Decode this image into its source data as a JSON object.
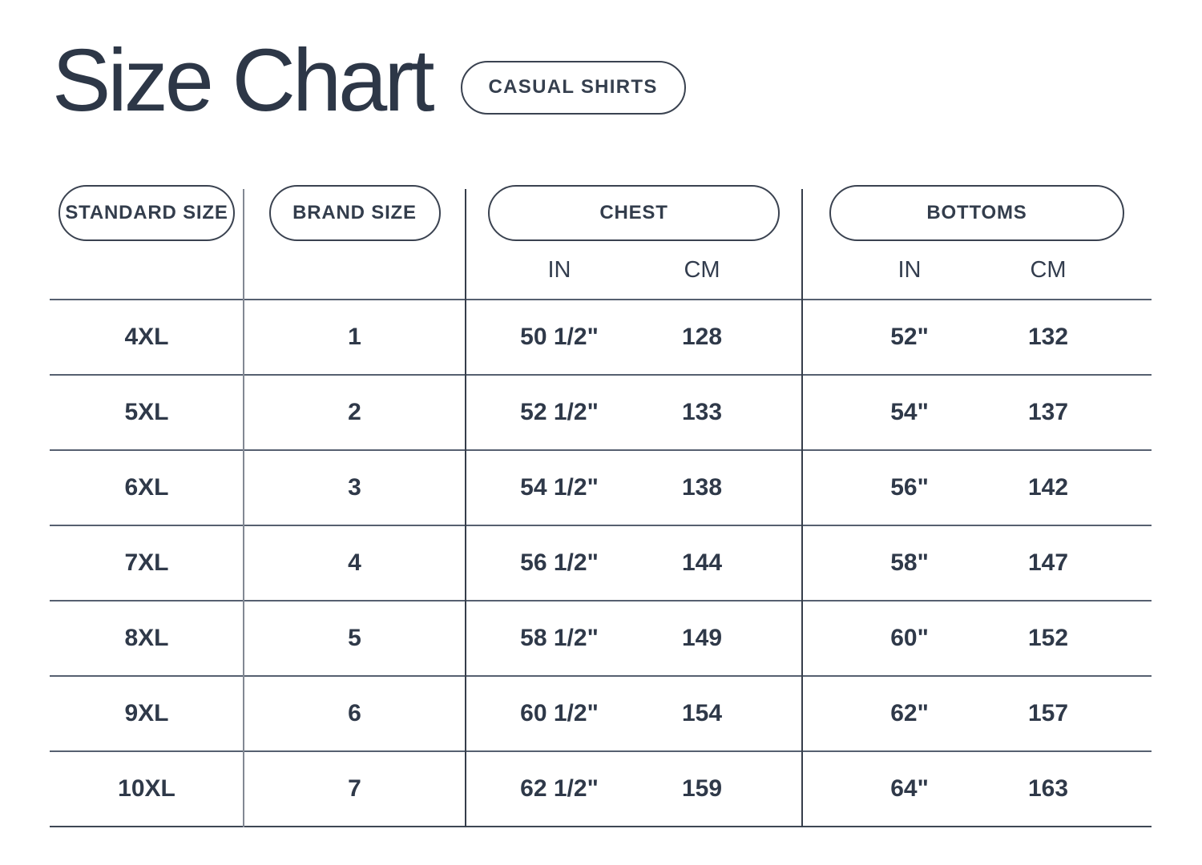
{
  "page": {
    "title": "Size Chart",
    "category_badge": "CASUAL SHIRTS"
  },
  "table": {
    "columns": {
      "standard_size": "STANDARD SIZE",
      "brand_size": "BRAND SIZE",
      "chest": "CHEST",
      "bottoms": "BOTTOMS"
    },
    "units": {
      "chest_in": "IN",
      "chest_cm": "CM",
      "bottoms_in": "IN",
      "bottoms_cm": "CM"
    },
    "rows": [
      {
        "standard": "4XL",
        "brand": "1",
        "chest_in": "50 1/2\"",
        "chest_cm": "128",
        "bottoms_in": "52\"",
        "bottoms_cm": "132"
      },
      {
        "standard": "5XL",
        "brand": "2",
        "chest_in": "52 1/2\"",
        "chest_cm": "133",
        "bottoms_in": "54\"",
        "bottoms_cm": "137"
      },
      {
        "standard": "6XL",
        "brand": "3",
        "chest_in": "54 1/2\"",
        "chest_cm": "138",
        "bottoms_in": "56\"",
        "bottoms_cm": "142"
      },
      {
        "standard": "7XL",
        "brand": "4",
        "chest_in": "56 1/2\"",
        "chest_cm": "144",
        "bottoms_in": "58\"",
        "bottoms_cm": "147"
      },
      {
        "standard": "8XL",
        "brand": "5",
        "chest_in": "58 1/2\"",
        "chest_cm": "149",
        "bottoms_in": "60\"",
        "bottoms_cm": "152"
      },
      {
        "standard": "9XL",
        "brand": "6",
        "chest_in": "60 1/2\"",
        "chest_cm": "154",
        "bottoms_in": "62\"",
        "bottoms_cm": "157"
      },
      {
        "standard": "10XL",
        "brand": "7",
        "chest_in": "62 1/2\"",
        "chest_cm": "159",
        "bottoms_in": "64\"",
        "bottoms_cm": "163"
      }
    ]
  },
  "chart_data": {
    "type": "table",
    "title": "Size Chart",
    "subtitle": "CASUAL SHIRTS",
    "columns": [
      "STANDARD SIZE",
      "BRAND SIZE",
      "CHEST IN",
      "CHEST CM",
      "BOTTOMS IN",
      "BOTTOMS CM"
    ],
    "rows": [
      [
        "4XL",
        "1",
        "50 1/2\"",
        128,
        "52\"",
        132
      ],
      [
        "5XL",
        "2",
        "52 1/2\"",
        133,
        "54\"",
        137
      ],
      [
        "6XL",
        "3",
        "54 1/2\"",
        138,
        "56\"",
        142
      ],
      [
        "7XL",
        "4",
        "56 1/2\"",
        144,
        "58\"",
        147
      ],
      [
        "8XL",
        "5",
        "58 1/2\"",
        149,
        "60\"",
        152
      ],
      [
        "9XL",
        "6",
        "60 1/2\"",
        154,
        "62\"",
        157
      ],
      [
        "10XL",
        "7",
        "62 1/2\"",
        159,
        "64\"",
        163
      ]
    ]
  },
  "colors": {
    "text": "#2f3949",
    "pill_border": "#3a4250",
    "row_line": "#566070",
    "divider_light": "#828893",
    "divider_dark": "#363e4b",
    "background": "#ffffff"
  }
}
